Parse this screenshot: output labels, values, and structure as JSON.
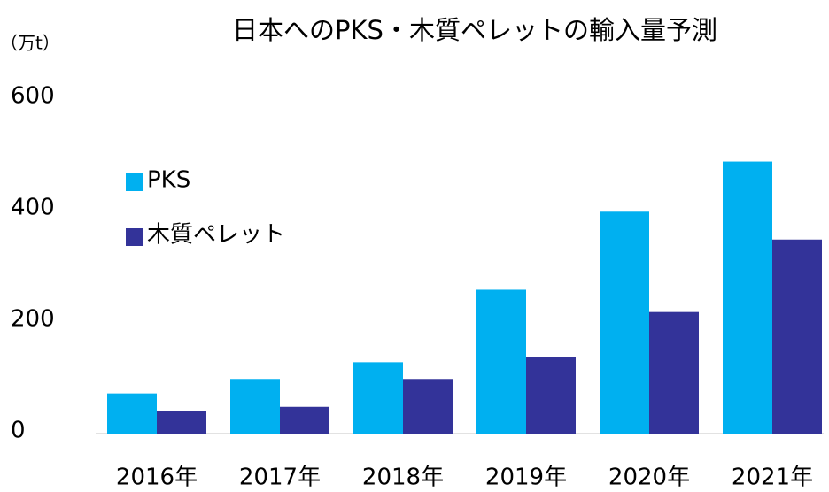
{
  "chart_data": {
    "type": "bar",
    "title": "日本へのPKS・木質ペレットの輸入量予測",
    "y_label": "（万t）",
    "categories": [
      "2016年",
      "2017年",
      "2018年",
      "2019年",
      "2020年",
      "2021年"
    ],
    "series": [
      {
        "name": "PKS",
        "color": "#00b0f0",
        "values": [
          72,
          98,
          128,
          258,
          398,
          488
        ]
      },
      {
        "name": "木質ペレット",
        "color": "#333399",
        "values": [
          40,
          48,
          98,
          138,
          218,
          348
        ]
      }
    ],
    "ylim": [
      0,
      600
    ],
    "yticks": [
      0,
      200,
      400,
      600
    ],
    "grid": false,
    "legend": "upper left"
  }
}
